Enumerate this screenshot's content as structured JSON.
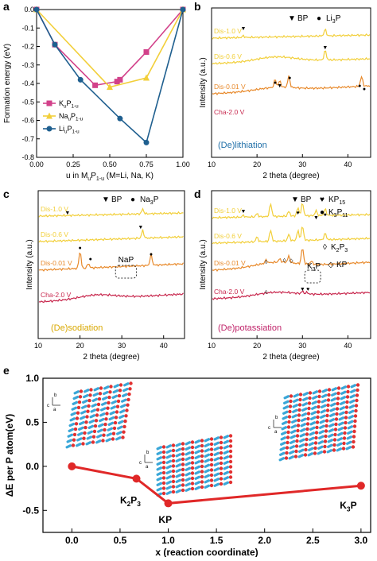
{
  "figure": {
    "panel_labels": [
      "a",
      "b",
      "c",
      "d",
      "e"
    ]
  },
  "panel_a": {
    "chart_data": {
      "type": "line",
      "xlabel": "u in MuP1-u (M=Li, Na, K)",
      "ylabel": "Formation energy (eV)",
      "xlim": [
        0.0,
        1.0
      ],
      "ylim": [
        -0.8,
        0.0
      ],
      "xticks": [
        "0.00",
        "0.25",
        "0.50",
        "0.75",
        "1.00"
      ],
      "yticks": [
        "0.0",
        "-0.1",
        "-0.2",
        "-0.3",
        "-0.4",
        "-0.5",
        "-0.6",
        "-0.7",
        "-0.8"
      ],
      "legend_position": "bottom-left",
      "series": [
        {
          "name": "KuP1-u",
          "color": "#d2418a",
          "marker": "square",
          "x": [
            0.0,
            0.125,
            0.4,
            0.55,
            0.57,
            0.75,
            1.0
          ],
          "y": [
            0.0,
            -0.19,
            -0.41,
            -0.39,
            -0.38,
            -0.23,
            0.0
          ]
        },
        {
          "name": "NauP1-u",
          "color": "#f2cf3a",
          "marker": "triangle",
          "x": [
            0.0,
            0.5,
            0.75,
            1.0
          ],
          "y": [
            0.0,
            -0.42,
            -0.37,
            0.0
          ]
        },
        {
          "name": "LiuP1-u",
          "color": "#1f5f8f",
          "marker": "circle",
          "x": [
            0.0,
            0.125,
            0.3,
            0.57,
            0.75,
            1.0
          ],
          "y": [
            0.0,
            -0.19,
            -0.38,
            -0.59,
            -0.72,
            0.0
          ]
        }
      ]
    }
  },
  "panel_b": {
    "chart_data": {
      "type": "line",
      "xlabel": "2 theta (degree)",
      "ylabel": "Intensity (a.u.)",
      "xlim": [
        10,
        45
      ],
      "xticks": [
        "10",
        "20",
        "30",
        "40"
      ],
      "legend": [
        "BP",
        "Li3P"
      ],
      "annotation": "(De)lithiation",
      "series": [
        {
          "name": "Dis-1.0 V",
          "color": "#f2cf3a"
        },
        {
          "name": "Dis-0.6 V",
          "color": "#f2cf3a"
        },
        {
          "name": "Dis-0.01 V",
          "color": "#e88a2c"
        },
        {
          "name": "Cha-2.0 V",
          "color": "#c8284e"
        }
      ]
    }
  },
  "panel_c": {
    "chart_data": {
      "type": "line",
      "xlabel": "2 theta (degree)",
      "ylabel": "Intensity (a.u.)",
      "xlim": [
        10,
        45
      ],
      "xticks": [
        "10",
        "20",
        "30",
        "40"
      ],
      "legend": [
        "BP",
        "Na3P"
      ],
      "annotation": "(De)sodiation",
      "box_label": "NaP",
      "series": [
        {
          "name": "Dis-1.0 V",
          "color": "#f2cf3a"
        },
        {
          "name": "Dis-0.6 V",
          "color": "#f2cf3a"
        },
        {
          "name": "Dis-0.01 V",
          "color": "#e88a2c"
        },
        {
          "name": "Cha-2.0 V",
          "color": "#c8284e"
        }
      ]
    }
  },
  "panel_d": {
    "chart_data": {
      "type": "line",
      "xlabel": "2 theta (degree)",
      "ylabel": "Intensity (a.u.)",
      "xlim": [
        10,
        45
      ],
      "xticks": [
        "10",
        "20",
        "30",
        "40"
      ],
      "legend": [
        "BP",
        "KP15",
        "K3P11",
        "K2P3",
        "KP"
      ],
      "annotation": "(De)potassiation",
      "box_label": "K3P",
      "series": [
        {
          "name": "Dis-1.0 V",
          "color": "#f2cf3a"
        },
        {
          "name": "Dis-0.6 V",
          "color": "#f2cf3a"
        },
        {
          "name": "Dis-0.01 V",
          "color": "#e88a2c"
        },
        {
          "name": "Cha-2.0 V",
          "color": "#c8284e"
        }
      ]
    }
  },
  "panel_e": {
    "chart_data": {
      "type": "line",
      "xlabel": "x (reaction coordinate)",
      "ylabel": "ΔE per P atom(eV)",
      "xlim": [
        -0.3,
        3.1
      ],
      "ylim": [
        -0.75,
        1.0
      ],
      "xticks": [
        "0.0",
        "0.5",
        "1.0",
        "1.5",
        "2.0",
        "2.5",
        "3.0"
      ],
      "yticks": [
        "1.0",
        "0.5",
        "0.0",
        "-0.5"
      ],
      "color": "#e02828",
      "x": [
        0.0,
        0.67,
        1.0,
        3.0
      ],
      "y": [
        0.0,
        -0.14,
        -0.42,
        -0.22
      ],
      "point_labels": [
        "",
        "K2P3",
        "KP",
        "K3P"
      ]
    }
  }
}
